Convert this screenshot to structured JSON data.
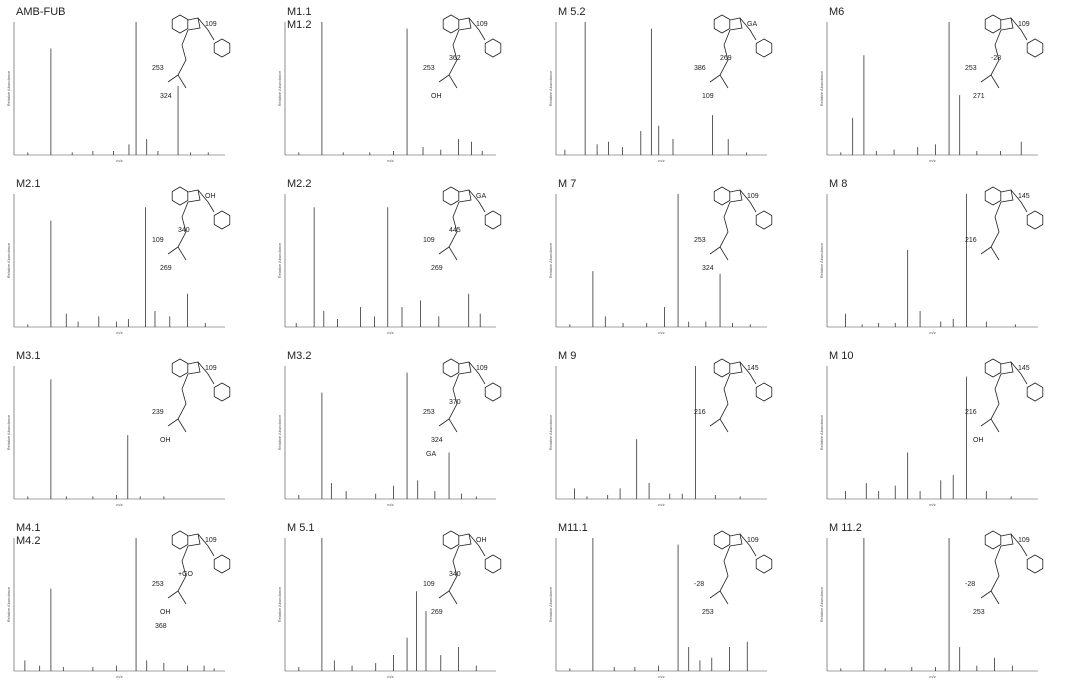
{
  "chart_data": [
    {
      "type": "spectrum",
      "title": "AMB-FUB",
      "ylabel": "Relative Abundance",
      "xlabel": "m/z",
      "xlim": [
        50,
        400
      ],
      "ylim": [
        0,
        100
      ],
      "color": "#333333",
      "x": [
        70,
        109,
        145,
        180,
        215,
        241,
        253,
        271,
        290,
        324,
        345,
        375
      ],
      "values": [
        2,
        80,
        2,
        3,
        3,
        8,
        100,
        12,
        3,
        52,
        2,
        2
      ],
      "annotations": [
        "109",
        "253",
        "324"
      ]
    },
    {
      "type": "spectrum",
      "title": [
        "M1.1",
        "M1.2"
      ],
      "ylabel": "Relative Abundance",
      "xlabel": "m/z",
      "xlim": [
        50,
        400
      ],
      "ylim": [
        0,
        100
      ],
      "color": "#333333",
      "x": [
        70,
        109,
        145,
        190,
        230,
        253,
        280,
        310,
        340,
        362,
        380
      ],
      "values": [
        2,
        100,
        2,
        2,
        3,
        95,
        6,
        4,
        12,
        10,
        3
      ],
      "annotations": [
        "109",
        "253",
        "OH",
        "362"
      ]
    },
    {
      "type": "spectrum",
      "title": "M 5.2",
      "ylabel": "Relative Abundance",
      "xlabel": "m/z",
      "xlim": [
        50,
        500
      ],
      "ylim": [
        0,
        100
      ],
      "color": "#333333",
      "x": [
        65,
        109,
        135,
        160,
        190,
        230,
        253,
        269,
        300,
        386,
        420,
        460
      ],
      "values": [
        4,
        100,
        8,
        10,
        6,
        18,
        95,
        22,
        12,
        30,
        12,
        2
      ],
      "annotations": [
        "GA",
        "386",
        "109",
        "269"
      ]
    },
    {
      "type": "spectrum",
      "title": "M6",
      "ylabel": "Relative Abundance",
      "xlabel": "m/z",
      "xlim": [
        50,
        400
      ],
      "ylim": [
        0,
        100
      ],
      "color": "#333333",
      "x": [
        70,
        90,
        109,
        130,
        160,
        200,
        230,
        253,
        271,
        300,
        340,
        375
      ],
      "values": [
        2,
        28,
        75,
        3,
        4,
        6,
        8,
        100,
        45,
        3,
        3,
        10
      ],
      "annotations": [
        "109",
        "253",
        "271",
        "-28"
      ]
    },
    {
      "type": "spectrum",
      "title": "M2.1",
      "ylabel": "Relative Abundance",
      "xlabel": "m/z",
      "xlim": [
        50,
        400
      ],
      "ylim": [
        0,
        100
      ],
      "color": "#333333",
      "x": [
        70,
        109,
        135,
        155,
        190,
        220,
        240,
        269,
        285,
        310,
        340,
        370
      ],
      "values": [
        2,
        80,
        10,
        4,
        8,
        4,
        6,
        90,
        12,
        8,
        25,
        3
      ],
      "annotations": [
        "OH",
        "109",
        "269",
        "340"
      ]
    },
    {
      "type": "spectrum",
      "title": "M2.2",
      "ylabel": "Relative Abundance",
      "xlabel": "m/z",
      "xlim": [
        50,
        500
      ],
      "ylim": [
        0,
        100
      ],
      "color": "#333333",
      "x": [
        70,
        109,
        130,
        160,
        210,
        240,
        269,
        300,
        340,
        380,
        445,
        470
      ],
      "values": [
        3,
        90,
        12,
        6,
        15,
        8,
        90,
        15,
        20,
        8,
        25,
        10
      ],
      "annotations": [
        "GA",
        "109",
        "269",
        "445"
      ]
    },
    {
      "type": "spectrum",
      "title": "M 7",
      "ylabel": "Relative Abundance",
      "xlabel": "m/z",
      "xlim": [
        50,
        400
      ],
      "ylim": [
        0,
        100
      ],
      "color": "#333333",
      "x": [
        70,
        109,
        130,
        160,
        200,
        230,
        253,
        271,
        300,
        324,
        345,
        375
      ],
      "values": [
        2,
        42,
        8,
        3,
        3,
        15,
        100,
        4,
        4,
        40,
        3,
        2
      ],
      "annotations": [
        "109",
        "253",
        "324"
      ]
    },
    {
      "type": "spectrum",
      "title": "M 8",
      "ylabel": "Relative Abundance",
      "xlabel": "m/z",
      "xlim": [
        50,
        300
      ],
      "ylim": [
        0,
        100
      ],
      "color": "#333333",
      "x": [
        70,
        90,
        110,
        130,
        145,
        160,
        185,
        200,
        216,
        240,
        275
      ],
      "values": [
        10,
        2,
        3,
        3,
        58,
        12,
        4,
        6,
        100,
        4,
        2
      ],
      "annotations": [
        "145",
        "216"
      ]
    },
    {
      "type": "spectrum",
      "title": "M3.1",
      "ylabel": "Relative Abundance",
      "xlabel": "m/z",
      "xlim": [
        50,
        400
      ],
      "ylim": [
        0,
        100
      ],
      "color": "#333333",
      "x": [
        70,
        109,
        135,
        180,
        220,
        239,
        260,
        300
      ],
      "values": [
        2,
        90,
        2,
        2,
        3,
        48,
        2,
        2
      ],
      "annotations": [
        "109",
        "239",
        "OH"
      ]
    },
    {
      "type": "spectrum",
      "title": "M3.2",
      "ylabel": "Relative Abundance",
      "xlabel": "m/z",
      "xlim": [
        50,
        400
      ],
      "ylim": [
        0,
        100
      ],
      "color": "#333333",
      "x": [
        70,
        109,
        125,
        150,
        200,
        230,
        253,
        271,
        300,
        324,
        345,
        370
      ],
      "values": [
        3,
        80,
        12,
        6,
        4,
        10,
        95,
        14,
        6,
        35,
        4,
        2
      ],
      "annotations": [
        "109",
        "253",
        "324",
        "370",
        "GA"
      ]
    },
    {
      "type": "spectrum",
      "title": "M 9",
      "ylabel": "Relative Abundance",
      "xlabel": "m/z",
      "xlim": [
        50,
        300
      ],
      "ylim": [
        0,
        100
      ],
      "color": "#333333",
      "x": [
        70,
        85,
        110,
        125,
        145,
        160,
        185,
        200,
        216,
        240,
        270
      ],
      "values": [
        8,
        2,
        3,
        8,
        45,
        12,
        4,
        4,
        100,
        3,
        2
      ],
      "annotations": [
        "145",
        "216"
      ]
    },
    {
      "type": "spectrum",
      "title": "M 10",
      "ylabel": "Relative Abundance",
      "xlabel": "m/z",
      "xlim": [
        50,
        300
      ],
      "ylim": [
        0,
        100
      ],
      "color": "#333333",
      "x": [
        70,
        95,
        110,
        130,
        145,
        160,
        185,
        200,
        216,
        240,
        270
      ],
      "values": [
        6,
        12,
        6,
        10,
        35,
        6,
        14,
        18,
        92,
        6,
        2
      ],
      "annotations": [
        "145",
        "216",
        "OH"
      ]
    },
    {
      "type": "spectrum",
      "title": [
        "M4.1",
        "M4.2"
      ],
      "ylabel": "Relative Abundance",
      "xlabel": "m/z",
      "xlim": [
        50,
        400
      ],
      "ylim": [
        0,
        100
      ],
      "color": "#333333",
      "x": [
        65,
        90,
        109,
        130,
        180,
        220,
        253,
        271,
        300,
        340,
        368,
        385
      ],
      "values": [
        8,
        4,
        62,
        3,
        3,
        4,
        100,
        8,
        6,
        4,
        4,
        2
      ],
      "annotations": [
        "109",
        "253",
        "OH",
        "+GO",
        "368"
      ]
    },
    {
      "type": "spectrum",
      "title": "M 5.1",
      "ylabel": "Relative Abundance",
      "xlabel": "m/z",
      "xlim": [
        50,
        400
      ],
      "ylim": [
        0,
        100
      ],
      "color": "#333333",
      "x": [
        70,
        109,
        130,
        160,
        200,
        230,
        253,
        269,
        285,
        310,
        340,
        370
      ],
      "values": [
        3,
        100,
        8,
        4,
        6,
        12,
        25,
        60,
        45,
        12,
        18,
        4
      ],
      "annotations": [
        "OH",
        "109",
        "269",
        "340"
      ]
    },
    {
      "type": "spectrum",
      "title": "M11.1",
      "ylabel": "Relative Abundance",
      "xlabel": "m/z",
      "xlim": [
        50,
        400
      ],
      "ylim": [
        0,
        100
      ],
      "color": "#333333",
      "x": [
        70,
        109,
        145,
        180,
        220,
        253,
        271,
        290,
        310,
        340,
        370
      ],
      "values": [
        2,
        100,
        3,
        3,
        4,
        95,
        18,
        8,
        10,
        18,
        22
      ],
      "annotations": [
        "109",
        "-28",
        "253"
      ]
    },
    {
      "type": "spectrum",
      "title": "M 11.2",
      "ylabel": "Relative Abundance",
      "xlabel": "m/z",
      "xlim": [
        50,
        400
      ],
      "ylim": [
        0,
        100
      ],
      "color": "#333333",
      "x": [
        70,
        109,
        145,
        190,
        230,
        253,
        271,
        300,
        330,
        360
      ],
      "values": [
        2,
        100,
        2,
        3,
        3,
        100,
        18,
        4,
        10,
        4
      ],
      "annotations": [
        "109",
        "-28",
        "253"
      ]
    }
  ]
}
